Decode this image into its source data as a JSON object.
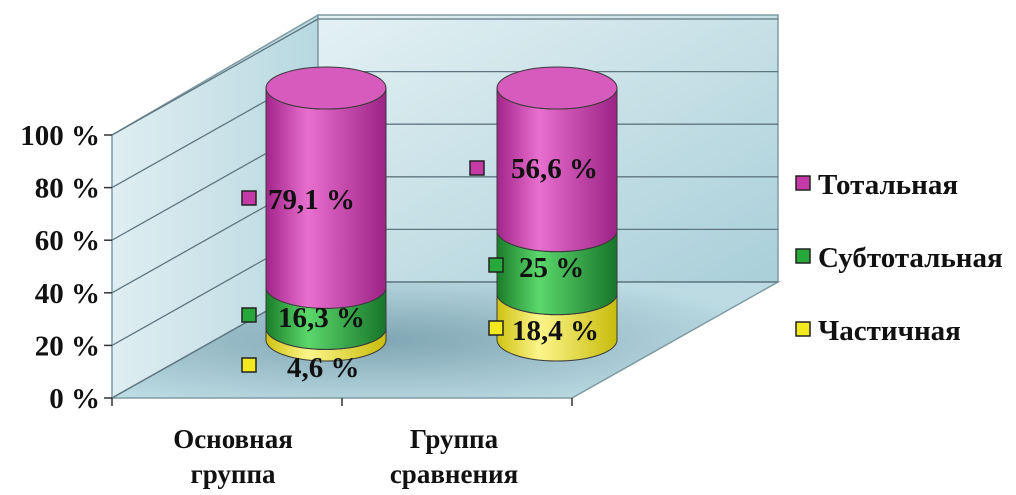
{
  "chart_data": {
    "type": "bar",
    "stacked": true,
    "style": "3d-cylinder",
    "y_ticks": [
      "0 %",
      "20 %",
      "40 %",
      "60 %",
      "80 %",
      "100 %"
    ],
    "ylim": [
      0,
      100
    ],
    "categories": [
      "Основная группа",
      "Группа сравнения"
    ],
    "category_lines": [
      [
        "Основная",
        "группа"
      ],
      [
        "Группа",
        "сравнения"
      ]
    ],
    "series": [
      {
        "name": "Частичная",
        "color": "#f2ea1e",
        "values": [
          4.6,
          18.4
        ],
        "labels": [
          "4,6 %",
          "18,4 %"
        ]
      },
      {
        "name": "Субтотальная",
        "color": "#27a83a",
        "values": [
          16.3,
          25
        ],
        "labels": [
          "16,3 %",
          "25 %"
        ]
      },
      {
        "name": "Тотальная",
        "color": "#c63aa7",
        "values": [
          79.1,
          56.6
        ],
        "labels": [
          "79,1 %",
          "56,6 %"
        ]
      }
    ],
    "legend": [
      "Тотальная",
      "Субтотальная",
      "Частичная"
    ],
    "legend_position": "right",
    "grid": true,
    "wall_color": "#c9e3ea"
  }
}
